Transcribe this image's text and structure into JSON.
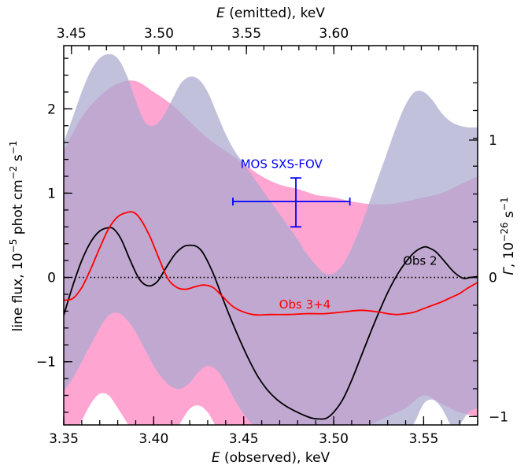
{
  "chart_data": {
    "type": "line",
    "xlabel_bottom": {
      "italic": "E",
      "rest": " (observed), keV"
    },
    "xlabel_top": {
      "italic": "E",
      "rest": " (emitted), keV"
    },
    "ylabel_left": {
      "main": "line flux, 10",
      "sup1": "−5",
      "mid": " phot cm",
      "sup2": "−2",
      "mid2": " s",
      "sup3": "−1"
    },
    "ylabel_right": {
      "italic": "Γ",
      "main": ", 10",
      "sup1": "−26",
      "mid": " s",
      "sup2": "−1"
    },
    "xlim": [
      3.35,
      3.58
    ],
    "ylim": [
      -1.75,
      2.75
    ],
    "x_ticks": [
      3.35,
      3.4,
      3.45,
      3.5,
      3.55
    ],
    "x_tick_labels": [
      "3.35",
      "3.40",
      "3.45",
      "3.50",
      "3.55"
    ],
    "y_ticks": [
      -1,
      0,
      1,
      2
    ],
    "y_tick_labels": [
      "−1",
      "0",
      "1",
      "2"
    ],
    "top_ticks": [
      3.45,
      3.5,
      3.55,
      3.6
    ],
    "top_tick_labels": [
      "3.45",
      "3.50",
      "3.55",
      "3.60"
    ],
    "top_tick_positions_obs": [
      3.3543,
      3.4029,
      3.4515,
      3.5001
    ],
    "right_ticks": [
      -1,
      0,
      1
    ],
    "right_tick_labels": [
      "−1",
      "0",
      "1"
    ],
    "right_tick_positions_flux": [
      -1.65,
      0.0,
      1.63
    ],
    "series": [
      {
        "name": "Obs 2",
        "color": "#000000",
        "x": [
          3.35,
          3.355,
          3.36,
          3.365,
          3.37,
          3.375,
          3.378,
          3.382,
          3.387,
          3.392,
          3.397,
          3.402,
          3.407,
          3.412,
          3.417,
          3.422,
          3.425,
          3.428,
          3.433,
          3.438,
          3.443,
          3.448,
          3.453,
          3.458,
          3.463,
          3.468,
          3.473,
          3.478,
          3.483,
          3.488,
          3.493,
          3.496,
          3.5,
          3.505,
          3.51,
          3.515,
          3.52,
          3.525,
          3.53,
          3.535,
          3.54,
          3.545,
          3.55,
          3.553,
          3.557,
          3.562,
          3.567,
          3.572,
          3.576,
          3.58
        ],
        "values": [
          -0.45,
          -0.1,
          0.2,
          0.42,
          0.55,
          0.59,
          0.57,
          0.45,
          0.2,
          -0.02,
          -0.1,
          -0.05,
          0.12,
          0.28,
          0.37,
          0.38,
          0.35,
          0.27,
          0.05,
          -0.23,
          -0.5,
          -0.75,
          -0.98,
          -1.18,
          -1.33,
          -1.44,
          -1.52,
          -1.58,
          -1.63,
          -1.67,
          -1.68,
          -1.67,
          -1.6,
          -1.45,
          -1.22,
          -0.95,
          -0.68,
          -0.42,
          -0.18,
          0.02,
          0.18,
          0.3,
          0.36,
          0.35,
          0.3,
          0.18,
          0.06,
          -0.01,
          0.0,
          0.01
        ]
      },
      {
        "name": "Obs 3+4",
        "color": "#ff0000",
        "x": [
          3.35,
          3.355,
          3.36,
          3.365,
          3.37,
          3.375,
          3.38,
          3.385,
          3.389,
          3.393,
          3.398,
          3.403,
          3.408,
          3.413,
          3.418,
          3.423,
          3.428,
          3.433,
          3.438,
          3.445,
          3.455,
          3.465,
          3.475,
          3.485,
          3.495,
          3.505,
          3.515,
          3.525,
          3.53,
          3.535,
          3.54,
          3.545,
          3.55,
          3.555,
          3.56,
          3.565,
          3.57,
          3.575,
          3.58
        ],
        "values": [
          -0.27,
          -0.25,
          -0.12,
          0.1,
          0.35,
          0.58,
          0.72,
          0.77,
          0.77,
          0.68,
          0.48,
          0.22,
          -0.02,
          -0.12,
          -0.14,
          -0.11,
          -0.09,
          -0.12,
          -0.22,
          -0.36,
          -0.44,
          -0.44,
          -0.44,
          -0.43,
          -0.43,
          -0.41,
          -0.39,
          -0.41,
          -0.43,
          -0.44,
          -0.43,
          -0.41,
          -0.37,
          -0.33,
          -0.29,
          -0.24,
          -0.19,
          -0.12,
          -0.06
        ]
      }
    ],
    "bands": [
      {
        "color": "#ff69b4",
        "opacity": 0.6,
        "x": [
          3.35,
          3.36,
          3.37,
          3.38,
          3.39,
          3.4,
          3.41,
          3.42,
          3.43,
          3.44,
          3.45,
          3.46,
          3.47,
          3.48,
          3.49,
          3.5,
          3.51,
          3.52,
          3.53,
          3.54,
          3.55,
          3.56,
          3.57,
          3.58
        ],
        "upper": [
          1.5,
          1.9,
          2.15,
          2.3,
          2.33,
          2.2,
          2.05,
          1.85,
          1.65,
          1.5,
          1.35,
          1.2,
          1.1,
          1.05,
          0.98,
          0.95,
          0.9,
          0.87,
          0.87,
          0.9,
          0.95,
          1.0,
          1.1,
          1.2
        ],
        "lower": [
          -1.9,
          -1.9,
          -1.9,
          -1.9,
          -1.9,
          -1.9,
          -1.9,
          -1.9,
          -1.9,
          -1.9,
          -1.9,
          -1.9,
          -1.9,
          -1.9,
          -1.9,
          -1.9,
          -1.85,
          -1.75,
          -1.65,
          -1.55,
          -1.4,
          -1.5,
          -1.6,
          -1.65
        ]
      },
      {
        "color": "#a9a9cf",
        "opacity": 0.72,
        "x": [
          3.35,
          3.355,
          3.36,
          3.365,
          3.37,
          3.375,
          3.38,
          3.385,
          3.39,
          3.395,
          3.4,
          3.405,
          3.41,
          3.415,
          3.42,
          3.425,
          3.43,
          3.435,
          3.44,
          3.445,
          3.45,
          3.455,
          3.46,
          3.465,
          3.47,
          3.475,
          3.48,
          3.485,
          3.49,
          3.495,
          3.5,
          3.505,
          3.51,
          3.515,
          3.52,
          3.525,
          3.53,
          3.535,
          3.54,
          3.545,
          3.55,
          3.555,
          3.56,
          3.565,
          3.57,
          3.575,
          3.58
        ],
        "upper": [
          1.6,
          1.9,
          2.2,
          2.45,
          2.6,
          2.65,
          2.6,
          2.4,
          2.1,
          1.85,
          1.8,
          1.9,
          2.1,
          2.3,
          2.38,
          2.35,
          2.2,
          1.95,
          1.7,
          1.5,
          1.35,
          1.2,
          1.05,
          0.9,
          0.75,
          0.6,
          0.45,
          0.28,
          0.15,
          0.05,
          0.05,
          0.15,
          0.35,
          0.6,
          0.9,
          1.2,
          1.5,
          1.8,
          2.05,
          2.2,
          2.2,
          2.1,
          1.95,
          1.85,
          1.8,
          1.78,
          1.78
        ],
        "lower": [
          -1.35,
          -1.2,
          -1.0,
          -0.8,
          -0.6,
          -0.45,
          -0.42,
          -0.5,
          -0.65,
          -0.85,
          -1.05,
          -1.2,
          -1.3,
          -1.32,
          -1.25,
          -1.12,
          -1.05,
          -1.1,
          -1.25,
          -1.45,
          -1.62,
          -1.75,
          -1.85,
          -1.9,
          -1.9,
          -1.9,
          -1.9,
          -1.9,
          -1.9,
          -1.9,
          -1.9,
          -1.9,
          -1.9,
          -1.9,
          -1.9,
          -1.9,
          -1.9,
          -1.9,
          -1.9,
          -1.9,
          -1.9,
          -1.9,
          -1.9,
          -1.85,
          -1.75,
          -1.6,
          -1.55
        ]
      }
    ],
    "white_gaps": [
      {
        "x": [
          3.355,
          3.36,
          3.365,
          3.37,
          3.375,
          3.38,
          3.385,
          3.39
        ],
        "y": [
          -1.9,
          -1.7,
          -1.5,
          -1.38,
          -1.4,
          -1.55,
          -1.72,
          -1.9
        ]
      },
      {
        "x": [
          3.41,
          3.415,
          3.42,
          3.425,
          3.43,
          3.435,
          3.44
        ],
        "y": [
          -1.9,
          -1.72,
          -1.56,
          -1.52,
          -1.6,
          -1.78,
          -1.9
        ]
      },
      {
        "x": [
          3.54,
          3.545,
          3.55,
          3.555,
          3.56,
          3.565,
          3.57
        ],
        "y": [
          -1.9,
          -1.72,
          -1.5,
          -1.45,
          -1.55,
          -1.75,
          -1.9
        ]
      }
    ],
    "errorbar": {
      "label": "MOS SXS-FOV",
      "color": "#0000ff",
      "x": 3.479,
      "y": 0.9,
      "x_err": [
        3.444,
        3.509
      ],
      "y_err": [
        0.6,
        1.18
      ]
    },
    "zero_line": {
      "y": 0,
      "style": "dotted"
    },
    "annotations": [
      {
        "text": "Obs 2",
        "x": 3.548,
        "y": 0.15,
        "color": "#000000"
      },
      {
        "text": "Obs 3+4",
        "x": 3.484,
        "y": -0.37,
        "color": "#ff0000"
      },
      {
        "text": "MOS SXS-FOV",
        "x": 3.471,
        "y": 1.3,
        "color": "#0000ff"
      }
    ]
  }
}
